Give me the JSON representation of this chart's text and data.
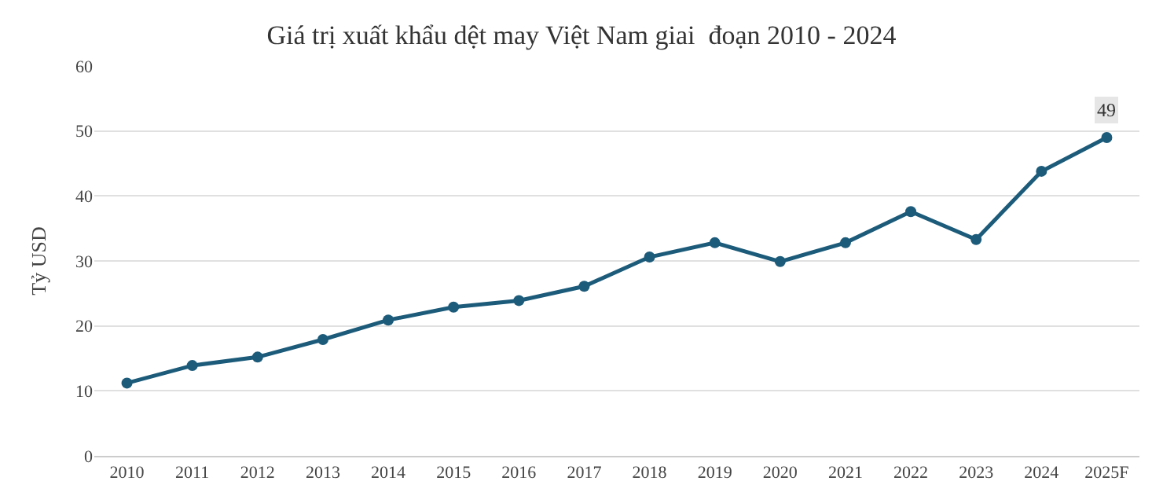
{
  "chart_data": {
    "type": "line",
    "title": "Giá trị xuất khẩu dệt may Việt Nam giai  đoạn 2010 - 2024",
    "ylabel": "Tỷ USD",
    "categories": [
      "2010",
      "2011",
      "2012",
      "2013",
      "2014",
      "2015",
      "2016",
      "2017",
      "2018",
      "2019",
      "2020",
      "2021",
      "2022",
      "2023",
      "2024",
      "2025F"
    ],
    "series": [
      {
        "color": "#1c5b7a",
        "values": [
          11.2,
          13.9,
          15.2,
          17.9,
          20.9,
          22.9,
          23.9,
          26.1,
          30.6,
          32.8,
          29.9,
          32.8,
          37.6,
          33.3,
          43.8,
          49
        ],
        "value_labels": [
          null,
          null,
          null,
          null,
          null,
          null,
          null,
          null,
          null,
          null,
          null,
          null,
          null,
          null,
          null,
          "49"
        ]
      }
    ],
    "ylim": [
      0,
      60
    ],
    "yticks": [
      0,
      10,
      20,
      30,
      40,
      50,
      60
    ],
    "grid": "y",
    "marker": "circle",
    "line_style": "solid"
  }
}
